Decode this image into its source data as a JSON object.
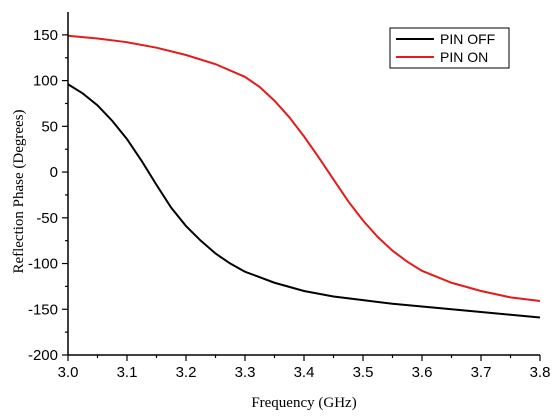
{
  "chart_data": {
    "type": "line",
    "xlabel": "Frequency (GHz)",
    "ylabel": "Reflection Phase (Degrees)",
    "xlim": [
      3.0,
      3.8
    ],
    "ylim": [
      -200,
      175
    ],
    "x_ticks": [
      3.0,
      3.1,
      3.2,
      3.3,
      3.4,
      3.5,
      3.6,
      3.7,
      3.8
    ],
    "x_tick_labels": [
      "3.0",
      "3.1",
      "3.2",
      "3.3",
      "3.4",
      "3.5",
      "3.6",
      "3.7",
      "3.8"
    ],
    "y_ticks": [
      -200,
      -150,
      -100,
      -50,
      0,
      50,
      100,
      150
    ],
    "y_tick_labels": [
      "-200",
      "-150",
      "-100",
      "-50",
      "0",
      "50",
      "100",
      "150"
    ],
    "grid": false,
    "legend_position": "top-right",
    "series": [
      {
        "name": "PIN OFF",
        "color": "#000000",
        "x": [
          3.0,
          3.025,
          3.05,
          3.075,
          3.1,
          3.125,
          3.15,
          3.175,
          3.2,
          3.225,
          3.25,
          3.275,
          3.3,
          3.35,
          3.4,
          3.45,
          3.5,
          3.55,
          3.6,
          3.65,
          3.7,
          3.75,
          3.8
        ],
        "y": [
          96,
          86,
          73,
          56,
          36,
          12,
          -14,
          -39,
          -59,
          -75,
          -89,
          -100,
          -109,
          -121,
          -130,
          -136,
          -140,
          -144,
          -147,
          -150,
          -153,
          -156,
          -159
        ]
      },
      {
        "name": "PIN ON",
        "color": "#e51b1b",
        "x": [
          3.0,
          3.05,
          3.1,
          3.15,
          3.2,
          3.25,
          3.3,
          3.325,
          3.35,
          3.375,
          3.4,
          3.425,
          3.45,
          3.475,
          3.5,
          3.525,
          3.55,
          3.575,
          3.6,
          3.65,
          3.7,
          3.75,
          3.8
        ],
        "y": [
          149,
          146,
          142,
          136,
          128,
          118,
          104,
          93,
          78,
          60,
          39,
          16,
          -8,
          -32,
          -53,
          -71,
          -86,
          -98,
          -108,
          -121,
          -130,
          -137,
          -141
        ]
      }
    ]
  }
}
